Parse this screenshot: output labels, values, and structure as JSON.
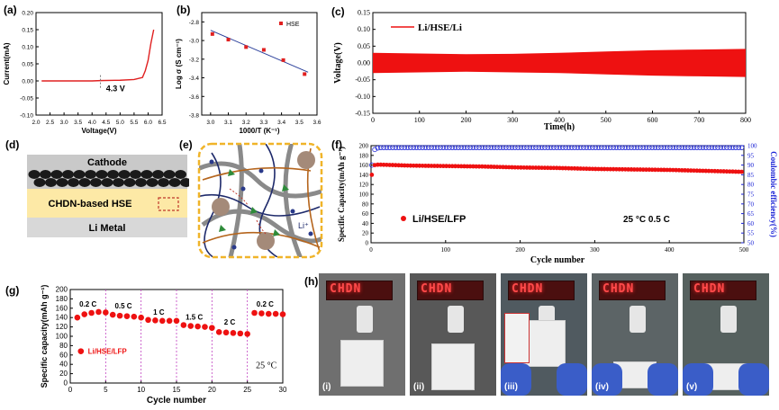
{
  "panels": {
    "a": {
      "label": "(a)",
      "xlabel": "Voltage(V)",
      "ylabel": "Current(mA)",
      "annotation": "4.3 V",
      "xticks": [
        "2.0",
        "2.5",
        "3.0",
        "3.5",
        "4.0",
        "4.5",
        "5.0",
        "5.5",
        "6.0",
        "6.5"
      ],
      "yticks": [
        "-0.10",
        "-0.05",
        "0.00",
        "0.05",
        "0.10",
        "0.15",
        "0.20"
      ]
    },
    "b": {
      "label": "(b)",
      "xlabel": "1000/T (K⁻¹)",
      "ylabel": "Log σ (S cm⁻¹)",
      "legend": "HSE",
      "xticks": [
        "3.0",
        "3.1",
        "3.2",
        "3.3",
        "3.4",
        "3.5",
        "3.6"
      ],
      "yticks": [
        "-2.8",
        "-3.0",
        "-3.2",
        "-3.4",
        "-3.6",
        "-3.8"
      ]
    },
    "c": {
      "label": "(c)",
      "xlabel": "Time(h)",
      "ylabel": "Voltage(V)",
      "legend": "Li/HSE/Li",
      "xticks": [
        "0",
        "100",
        "200",
        "300",
        "400",
        "500",
        "600",
        "700",
        "800"
      ],
      "yticks": [
        "0.15",
        "0.10",
        "0.05",
        "0.00",
        "-0.05",
        "-0.10",
        "-0.15"
      ]
    },
    "d": {
      "label": "(d)",
      "cathode": "Cathode",
      "hse": "CHDN-based HSE",
      "li": "Li Metal"
    },
    "e": {
      "label": "(e)",
      "li_ion": "Li⁺"
    },
    "f": {
      "label": "(f)",
      "xlabel": "Cycle number",
      "ylabel": "Specific Capacity(mAh g⁻¹)",
      "ylabel2": "Coulombic efficiency(%)",
      "legend": "Li/HSE/LFP",
      "condition": "25 °C 0.5 C",
      "xticks": [
        "0",
        "100",
        "200",
        "300",
        "400",
        "500"
      ],
      "yticks": [
        "0",
        "20",
        "40",
        "60",
        "80",
        "100",
        "120",
        "140",
        "160",
        "180",
        "200"
      ],
      "y2ticks": [
        "50",
        "55",
        "60",
        "65",
        "70",
        "75",
        "80",
        "85",
        "90",
        "95",
        "100"
      ]
    },
    "g": {
      "label": "(g)",
      "xlabel": "Cycle number",
      "ylabel": "Specific capacity(mAh g⁻¹)",
      "legend": "Li/HSE/LFP",
      "temp": "25 °C",
      "rates": [
        "0.2 C",
        "0.5 C",
        "1 C",
        "1.5 C",
        "2 C",
        "0.2 C"
      ],
      "xticks": [
        "0",
        "5",
        "10",
        "15",
        "20",
        "25",
        "30"
      ],
      "yticks": [
        "0",
        "20",
        "40",
        "60",
        "80",
        "100",
        "120",
        "140",
        "160",
        "180",
        "200"
      ]
    },
    "h": {
      "label": "(h)",
      "sign_text": "CHDN",
      "photos": [
        "(i)",
        "(ii)",
        "(iii)",
        "(iv)",
        "(v)"
      ]
    }
  },
  "chart_data": [
    {
      "type": "line",
      "title": "(a)",
      "xlabel": "Voltage(V)",
      "ylabel": "Current(mA)",
      "xlim": [
        2.0,
        6.5
      ],
      "ylim": [
        -0.1,
        0.2
      ],
      "x": [
        2.2,
        3.0,
        4.0,
        4.3,
        5.0,
        5.5,
        5.8,
        5.9,
        6.0,
        6.1,
        6.2
      ],
      "y": [
        0.0,
        0.0,
        0.0,
        0.001,
        0.002,
        0.004,
        0.01,
        0.03,
        0.06,
        0.11,
        0.15
      ]
    },
    {
      "type": "scatter",
      "title": "(b)",
      "xlabel": "1000/T (K⁻¹)",
      "ylabel": "Log σ (S cm⁻¹)",
      "xlim": [
        2.95,
        3.6
      ],
      "ylim": [
        -3.8,
        -2.7
      ],
      "series": [
        {
          "name": "HSE",
          "x": [
            3.01,
            3.1,
            3.2,
            3.3,
            3.41,
            3.53
          ],
          "y": [
            -2.93,
            -2.99,
            -3.07,
            -3.1,
            -3.21,
            -3.36
          ]
        }
      ],
      "fit": {
        "x": [
          3.0,
          3.55
        ],
        "y": [
          -2.89,
          -3.34
        ]
      }
    },
    {
      "type": "area",
      "title": "(c)",
      "xlabel": "Time(h)",
      "ylabel": "Voltage(V)",
      "xlim": [
        0,
        800
      ],
      "ylim": [
        -0.15,
        0.15
      ],
      "series": [
        {
          "name": "Li/HSE/Li",
          "x": [
            0,
            100,
            200,
            300,
            400,
            500,
            600,
            700,
            800
          ],
          "upper": [
            0.03,
            0.028,
            0.026,
            0.027,
            0.03,
            0.034,
            0.038,
            0.04,
            0.042
          ],
          "lower": [
            -0.03,
            -0.028,
            -0.026,
            -0.028,
            -0.03,
            -0.034,
            -0.038,
            -0.04,
            -0.042
          ]
        }
      ]
    },
    {
      "type": "scatter",
      "title": "(f)",
      "xlabel": "Cycle number",
      "ylabel": "Specific Capacity(mAh g⁻¹)",
      "xlim": [
        0,
        500
      ],
      "ylim": [
        0,
        200
      ],
      "series": [
        {
          "name": "Specific capacity",
          "x": [
            1,
            5,
            10,
            50,
            100,
            150,
            200,
            250,
            300,
            350,
            400,
            450,
            500
          ],
          "y": [
            140,
            160,
            161,
            159,
            158,
            157,
            155,
            154,
            152,
            151,
            150,
            148,
            146
          ]
        },
        {
          "name": "Coulombic efficiency",
          "axis": "right",
          "ylim": [
            50,
            100
          ],
          "x": [
            1,
            5,
            10,
            100,
            200,
            300,
            400,
            500
          ],
          "y": [
            90,
            98,
            99,
            99,
            99,
            99,
            99,
            99
          ]
        }
      ]
    },
    {
      "type": "scatter",
      "title": "(g)",
      "xlabel": "Cycle number",
      "ylabel": "Specific capacity(mAh g⁻¹)",
      "xlim": [
        0,
        30
      ],
      "ylim": [
        0,
        200
      ],
      "series": [
        {
          "name": "Li/HSE/LFP",
          "x": [
            1,
            2,
            3,
            4,
            5,
            6,
            7,
            8,
            9,
            10,
            11,
            12,
            13,
            14,
            15,
            16,
            17,
            18,
            19,
            20,
            21,
            22,
            23,
            24,
            25,
            26,
            27,
            28,
            29,
            30
          ],
          "y": [
            140,
            147,
            150,
            152,
            151,
            146,
            144,
            143,
            142,
            140,
            135,
            134,
            133,
            133,
            133,
            124,
            122,
            121,
            120,
            118,
            109,
            108,
            107,
            106,
            105,
            150,
            149,
            148,
            148,
            147
          ]
        }
      ]
    }
  ]
}
